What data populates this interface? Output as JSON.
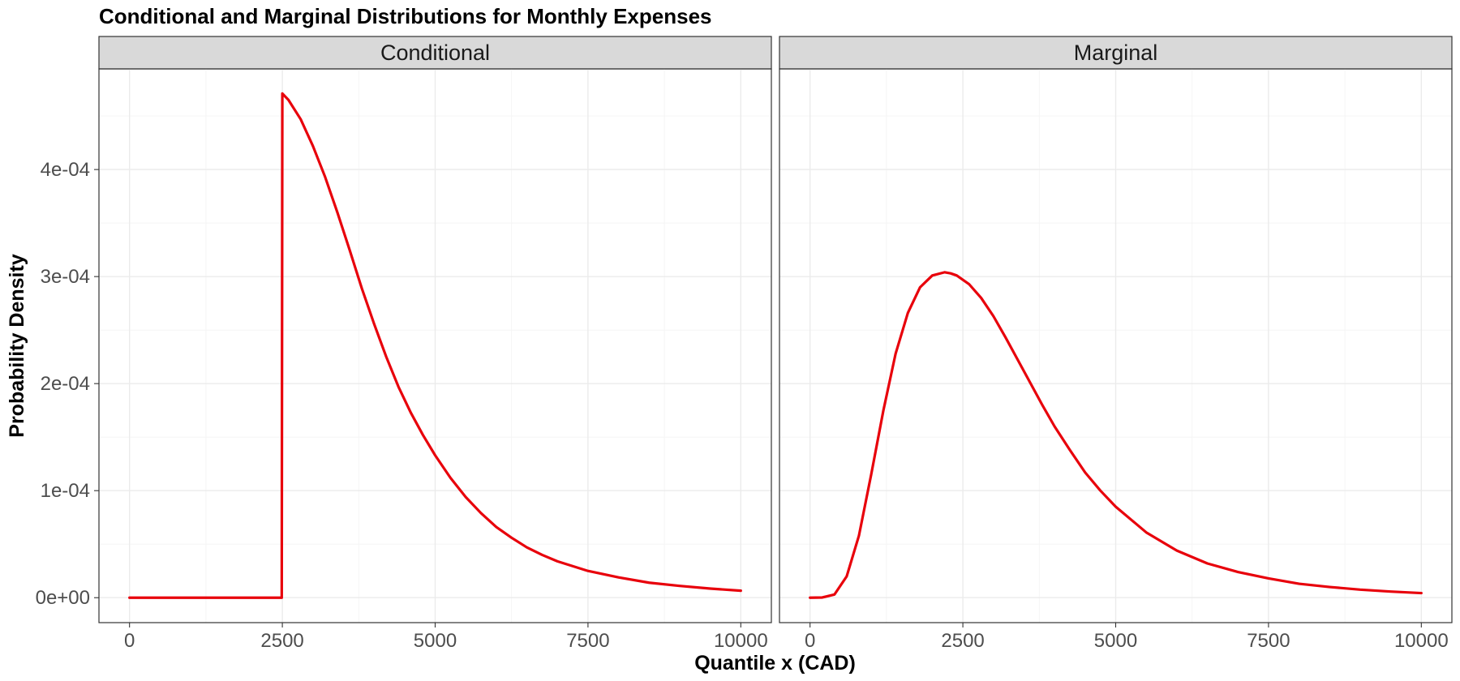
{
  "chart_data": {
    "type": "line",
    "title": "Conditional and Marginal Distributions for Monthly Expenses",
    "xlabel": "Quantile x (CAD)",
    "ylabel": "Probability Density",
    "xlim": [
      -500,
      10500
    ],
    "ylim": [
      -2.33e-05,
      0.000494
    ],
    "x_ticks": [
      0,
      2500,
      5000,
      7500,
      10000
    ],
    "x_tick_labels": [
      "0",
      "2500",
      "5000",
      "7500",
      "10000"
    ],
    "y_ticks": [
      0,
      0.0001,
      0.0002,
      0.0003,
      0.0004
    ],
    "y_tick_labels": [
      "0e+00",
      "1e-04",
      "2e-04",
      "3e-04",
      "4e-04"
    ],
    "grid": true,
    "line_color": "#e8000b",
    "panels": [
      {
        "name": "Conditional",
        "x": [
          0,
          2490,
          2500,
          2600,
          2800,
          3000,
          3200,
          3400,
          3600,
          3800,
          4000,
          4200,
          4400,
          4600,
          4800,
          5000,
          5250,
          5500,
          5750,
          6000,
          6250,
          6500,
          6750,
          7000,
          7500,
          8000,
          8500,
          9000,
          9500,
          10000
        ],
        "y": [
          0,
          0,
          0.000471,
          0.000465,
          0.000447,
          0.000422,
          0.000393,
          0.00036,
          0.000325,
          0.000289,
          0.000256,
          0.000225,
          0.000197,
          0.000173,
          0.000152,
          0.000133,
          0.000112,
          9.4e-05,
          7.9e-05,
          6.6e-05,
          5.6e-05,
          4.7e-05,
          4e-05,
          3.4e-05,
          2.5e-05,
          1.9e-05,
          1.4e-05,
          1.1e-05,
          8.5e-06,
          6.5e-06
        ]
      },
      {
        "name": "Marginal",
        "x": [
          0,
          200,
          400,
          600,
          800,
          1000,
          1200,
          1400,
          1600,
          1800,
          2000,
          2200,
          2300,
          2400,
          2600,
          2800,
          3000,
          3200,
          3400,
          3600,
          3800,
          4000,
          4250,
          4500,
          4750,
          5000,
          5500,
          6000,
          6500,
          7000,
          7500,
          8000,
          8500,
          9000,
          9500,
          10000
        ],
        "y": [
          0,
          2e-07,
          3e-06,
          2e-05,
          5.8e-05,
          0.000115,
          0.000175,
          0.000228,
          0.000266,
          0.00029,
          0.000301,
          0.000304,
          0.000303,
          0.000301,
          0.000293,
          0.00028,
          0.000263,
          0.000243,
          0.000222,
          0.000201,
          0.00018,
          0.00016,
          0.000138,
          0.000117,
          0.0001,
          8.5e-05,
          6.1e-05,
          4.4e-05,
          3.2e-05,
          2.4e-05,
          1.8e-05,
          1.3e-05,
          1e-05,
          7.5e-06,
          5.7e-06,
          4.3e-06
        ]
      }
    ]
  }
}
